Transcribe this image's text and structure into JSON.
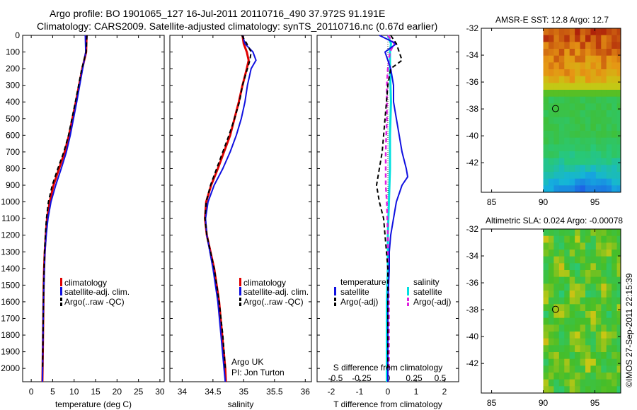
{
  "header": {
    "line1": "Argo profile: BO 1901065_127 16-Jul-2011 20110716_490 37.972S 91.191E",
    "line2": "Climatology: CARS2009. Satellite-adjusted climatology: synTS_20110716.nc (0.67d earlier)"
  },
  "colors": {
    "climatology": "#e00000",
    "satellite": "#1010e0",
    "argo": "#000000",
    "salinity_satellite": "#00e0e0",
    "salinity_argo": "#e020e0"
  },
  "chart_data": [
    {
      "type": "line",
      "id": "temperature-profile",
      "xlabel": "temperature (deg C)",
      "xlim": [
        -2,
        31
      ],
      "xticks": [
        0,
        5,
        10,
        15,
        20,
        25,
        30
      ],
      "ylim": [
        2080,
        0
      ],
      "yticks": [
        0,
        100,
        200,
        300,
        400,
        500,
        600,
        700,
        800,
        900,
        1000,
        1100,
        1200,
        1300,
        1400,
        1500,
        1600,
        1700,
        1800,
        1900,
        2000
      ],
      "legend": {
        "placement": "bottom-right",
        "entries": [
          "climatology",
          "satellite-adj. clim.",
          "Argo(..raw -QC)"
        ]
      },
      "series": [
        {
          "name": "climatology",
          "depth": [
            0,
            100,
            200,
            400,
            600,
            700,
            800,
            900,
            1000,
            1100,
            1200,
            1300,
            1400,
            1500,
            1600,
            1800,
            2000,
            2080
          ],
          "values": [
            12.9,
            12.8,
            11.9,
            10.4,
            8.8,
            7.8,
            6.5,
            5.2,
            4.3,
            3.7,
            3.4,
            3.15,
            3.0,
            2.9,
            2.85,
            2.75,
            2.65,
            2.6
          ]
        },
        {
          "name": "satellite-adj. clim.",
          "depth": [
            0,
            100,
            200,
            400,
            600,
            700,
            800,
            900,
            1000,
            1100,
            1200,
            1300,
            1400,
            1500,
            1600,
            1800,
            2000,
            2080
          ],
          "values": [
            12.6,
            12.7,
            12.0,
            10.6,
            9.1,
            8.2,
            7.0,
            5.7,
            4.6,
            3.9,
            3.5,
            3.2,
            3.05,
            2.95,
            2.85,
            2.75,
            2.65,
            2.6
          ]
        },
        {
          "name": "Argo(..raw -QC)",
          "depth": [
            0,
            50,
            100,
            200,
            400,
            600,
            700,
            800,
            900,
            1000,
            1100,
            1200,
            1300,
            1400,
            1500,
            1600,
            1800,
            2000
          ],
          "values": [
            13.0,
            12.9,
            12.8,
            11.8,
            10.3,
            8.7,
            7.6,
            6.2,
            4.9,
            4.0,
            3.55,
            3.3,
            3.1,
            3.0,
            2.9,
            2.85,
            2.75,
            2.65
          ]
        }
      ]
    },
    {
      "type": "line",
      "id": "salinity-profile",
      "xlabel": "salinity",
      "xlim": [
        33.8,
        36.1
      ],
      "xticks": [
        34,
        34.5,
        35,
        35.5,
        36
      ],
      "xticklabels": [
        "34",
        "34.5",
        "35",
        "35.5",
        "36"
      ],
      "ylim": [
        2080,
        0
      ],
      "legend": {
        "placement": "bottom-right",
        "entries": [
          "climatology",
          "satellite-adj. clim.",
          "Argo(..raw -QC)"
        ]
      },
      "annotation": [
        "Argo UK",
        "PI: Jon Turton"
      ],
      "series": [
        {
          "name": "climatology",
          "depth": [
            0,
            50,
            100,
            150,
            200,
            300,
            400,
            500,
            600,
            700,
            800,
            900,
            1000,
            1100,
            1200,
            1400,
            1600,
            1800,
            2000,
            2080
          ],
          "values": [
            34.98,
            35.0,
            35.05,
            35.08,
            35.05,
            34.98,
            34.92,
            34.85,
            34.78,
            34.68,
            34.58,
            34.47,
            34.39,
            34.37,
            34.4,
            34.52,
            34.6,
            34.65,
            34.7,
            34.71
          ]
        },
        {
          "name": "satellite-adj. clim.",
          "depth": [
            0,
            50,
            100,
            150,
            200,
            300,
            400,
            500,
            600,
            700,
            800,
            900,
            1000,
            1100,
            1200,
            1400,
            1600,
            1800,
            2000,
            2080
          ],
          "values": [
            34.98,
            35.02,
            35.15,
            35.2,
            35.12,
            35.06,
            35.02,
            34.96,
            34.88,
            34.78,
            34.66,
            34.52,
            34.42,
            34.38,
            34.4,
            34.5,
            34.58,
            34.63,
            34.68,
            34.7
          ]
        },
        {
          "name": "Argo(..raw -QC)",
          "depth": [
            0,
            50,
            100,
            150,
            200,
            300,
            400,
            500,
            600,
            700,
            800,
            900,
            1000,
            1100,
            1200,
            1400,
            1600,
            1800,
            2000
          ],
          "values": [
            34.97,
            35.05,
            35.12,
            35.1,
            35.06,
            34.98,
            34.93,
            34.85,
            34.76,
            34.66,
            34.56,
            34.46,
            34.39,
            34.37,
            34.4,
            34.52,
            34.6,
            34.66,
            34.7
          ]
        }
      ]
    },
    {
      "type": "line",
      "id": "difference-profile",
      "xlabel": "T difference from climatology",
      "xlim": [
        -2.5,
        2.5
      ],
      "xticks": [
        -2,
        -1,
        0,
        1,
        2
      ],
      "xticklabels": [
        "-2",
        "-1",
        "0",
        "1",
        "2"
      ],
      "top_axis_label": "S difference from climatology",
      "top_ticks": [
        -0.5,
        -0.25,
        0,
        0.25,
        0.5
      ],
      "top_ticklabels": [
        "-0.5",
        "-0.25",
        "0",
        "0.25",
        "0.5"
      ],
      "ylim": [
        2080,
        0
      ],
      "legend": {
        "placement": "bottom",
        "temperature_title": "temperature",
        "salinity_title": "salinity",
        "entries": [
          "satellite",
          "Argo(-adj)",
          "satellite",
          "Argo(-adj)"
        ]
      },
      "series": [
        {
          "name": "temperature satellite",
          "depth": [
            0,
            50,
            100,
            200,
            300,
            400,
            500,
            600,
            700,
            800,
            850,
            900,
            1000,
            1100,
            1200,
            1300,
            1400,
            1600,
            1800,
            2000,
            2080
          ],
          "values": [
            -0.3,
            0.3,
            -0.1,
            0.1,
            0.2,
            0.2,
            0.3,
            0.4,
            0.5,
            0.65,
            0.7,
            0.5,
            0.3,
            0.2,
            0.1,
            0.05,
            0.05,
            0.0,
            0.0,
            0.0,
            0.0
          ]
        },
        {
          "name": "temperature Argo(-adj)",
          "depth": [
            0,
            50,
            100,
            150,
            200,
            300,
            400,
            500,
            600,
            700,
            800,
            900,
            1000,
            1100,
            1200,
            1300,
            1400,
            1500,
            1600,
            1800,
            2000
          ],
          "values": [
            0.1,
            0.3,
            0.4,
            0.5,
            0.1,
            0.0,
            -0.05,
            -0.1,
            -0.15,
            -0.2,
            -0.3,
            -0.4,
            -0.3,
            -0.15,
            -0.1,
            -0.05,
            0.0,
            0.0,
            0.0,
            0.0,
            0.0
          ]
        },
        {
          "name": "salinity satellite",
          "depth": [
            0,
            50,
            100,
            200,
            400,
            600,
            800,
            1000,
            1200,
            1400,
            1600,
            1800,
            2000,
            2080
          ],
          "values": [
            0.0,
            0.03,
            0.02,
            0.02,
            0.03,
            0.02,
            0.02,
            0.01,
            0.0,
            0.0,
            -0.01,
            -0.01,
            -0.01,
            -0.01
          ]
        },
        {
          "name": "salinity Argo(-adj)",
          "depth": [
            0,
            50,
            100,
            200,
            300,
            500,
            700,
            900,
            1000,
            1200,
            1400,
            1600,
            1800,
            2000
          ],
          "values": [
            0.0,
            0.06,
            0.02,
            0.0,
            -0.01,
            -0.01,
            -0.02,
            -0.02,
            -0.01,
            0.0,
            0.0,
            0.01,
            0.01,
            0.01
          ]
        }
      ]
    },
    {
      "type": "heatmap",
      "id": "sst-map",
      "title": "AMSR-E SST: 12.8 Argo: 12.7",
      "xlim": [
        84,
        97.5
      ],
      "ylim": [
        -44.2,
        -32
      ],
      "xticks": [
        85,
        90,
        95
      ],
      "yticks": [
        -32,
        -34,
        -36,
        -38,
        -40,
        -42
      ],
      "data_x_range": [
        90,
        97.5
      ],
      "marker": [
        91.191,
        -37.972
      ]
    },
    {
      "type": "heatmap",
      "id": "sla-map",
      "title": "Altimetric SLA: 0.024 Argo: -0.00078",
      "xlim": [
        84,
        97.5
      ],
      "ylim": [
        -44.2,
        -32
      ],
      "xticks": [
        85,
        90,
        95
      ],
      "yticks": [
        -32,
        -34,
        -36,
        -38,
        -40,
        -42
      ],
      "data_x_range": [
        90,
        97.5
      ],
      "marker": [
        91.191,
        -37.972
      ]
    }
  ],
  "footer": {
    "stamp": "©IMOS 27-Sep-2011 22:15:39"
  }
}
